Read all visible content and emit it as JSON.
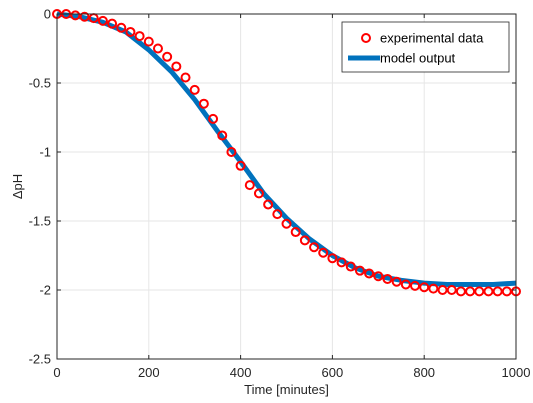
{
  "chart_data": {
    "type": "line",
    "title": "",
    "xlabel": "Time [minutes]",
    "ylabel": "ΔpH",
    "xlim": [
      0,
      1000
    ],
    "ylim": [
      -2.5,
      0
    ],
    "xticks": [
      "0",
      "200",
      "400",
      "600",
      "800",
      "1000"
    ],
    "yticks": [
      "0",
      "-0.5",
      "-1",
      "-1.5",
      "-2",
      "-2.5"
    ],
    "grid": true,
    "legend_position": "top-right",
    "series": [
      {
        "name": "experimental data",
        "style": "markers",
        "marker": "circle",
        "color": "#ff0000",
        "x": [
          0,
          20,
          40,
          60,
          80,
          100,
          120,
          140,
          160,
          180,
          200,
          220,
          240,
          260,
          280,
          300,
          320,
          340,
          360,
          380,
          400,
          420,
          440,
          460,
          480,
          500,
          520,
          540,
          560,
          580,
          600,
          620,
          640,
          660,
          680,
          700,
          720,
          740,
          760,
          780,
          800,
          820,
          840,
          860,
          880,
          900,
          920,
          940,
          960,
          980,
          1000
        ],
        "y": [
          0.0,
          0.0,
          -0.01,
          -0.02,
          -0.03,
          -0.05,
          -0.07,
          -0.1,
          -0.13,
          -0.16,
          -0.2,
          -0.25,
          -0.31,
          -0.38,
          -0.46,
          -0.55,
          -0.65,
          -0.76,
          -0.88,
          -1.0,
          -1.1,
          -1.24,
          -1.3,
          -1.38,
          -1.45,
          -1.52,
          -1.58,
          -1.64,
          -1.69,
          -1.73,
          -1.77,
          -1.8,
          -1.83,
          -1.86,
          -1.88,
          -1.9,
          -1.92,
          -1.94,
          -1.96,
          -1.97,
          -1.98,
          -1.99,
          -2.0,
          -2.0,
          -2.01,
          -2.01,
          -2.01,
          -2.01,
          -2.01,
          -2.01,
          -2.01
        ]
      },
      {
        "name": "model output",
        "style": "line",
        "color": "#0072bd",
        "x": [
          0,
          50,
          100,
          150,
          200,
          250,
          300,
          350,
          400,
          450,
          500,
          550,
          600,
          650,
          700,
          750,
          800,
          850,
          900,
          950,
          1000
        ],
        "y": [
          0.0,
          -0.02,
          -0.06,
          -0.13,
          -0.26,
          -0.42,
          -0.62,
          -0.85,
          -1.07,
          -1.3,
          -1.48,
          -1.63,
          -1.75,
          -1.84,
          -1.9,
          -1.93,
          -1.95,
          -1.96,
          -1.96,
          -1.96,
          -1.95
        ]
      }
    ]
  }
}
